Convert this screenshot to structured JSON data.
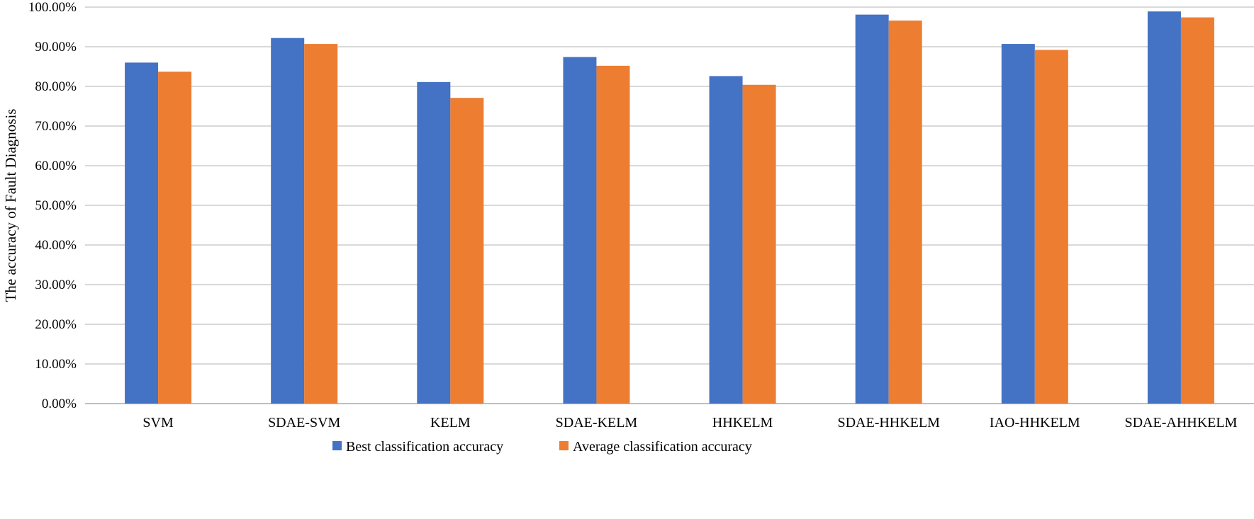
{
  "chart_data": {
    "type": "bar",
    "title": "",
    "xlabel": "",
    "ylabel": "The accuracy of  Fault Diagnosis",
    "ylim": [
      0,
      1
    ],
    "y_tick_format": "percent_2dp",
    "y_ticks": [
      "0.00%",
      "10.00%",
      "20.00%",
      "30.00%",
      "40.00%",
      "50.00%",
      "60.00%",
      "70.00%",
      "80.00%",
      "90.00%",
      "100.00%"
    ],
    "grid": true,
    "legend_position": "bottom",
    "categories": [
      "SVM",
      "SDAE-SVM",
      "KELM",
      "SDAE-KELM",
      "HHKELM",
      "SDAE-HHKELM",
      "IAO-HHKELM",
      "SDAE-AHHKELM"
    ],
    "series": [
      {
        "name": "Best classification accuracy",
        "color": "#4472C4",
        "values": [
          0.86,
          0.922,
          0.811,
          0.874,
          0.826,
          0.981,
          0.907,
          0.989
        ]
      },
      {
        "name": "Average classification accuracy",
        "color": "#ED7D31",
        "values": [
          0.837,
          0.907,
          0.771,
          0.852,
          0.804,
          0.966,
          0.892,
          0.974
        ]
      }
    ]
  }
}
